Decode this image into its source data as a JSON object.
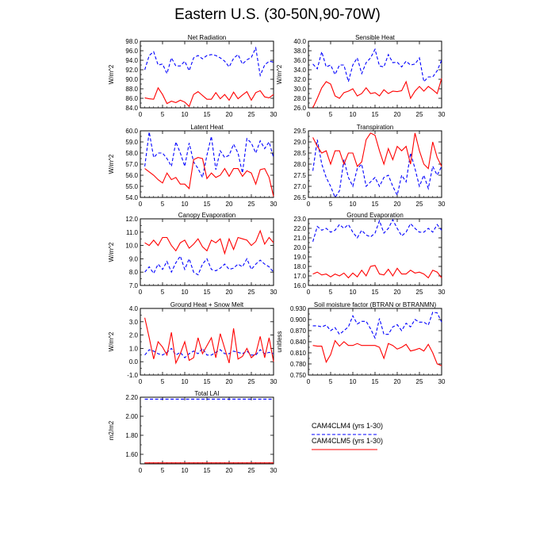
{
  "figure": {
    "title": "Eastern U.S. (30-50N,90-70W)"
  },
  "legend": {
    "entries": [
      {
        "label": "CAM4CLM4 (yrs 1-30)",
        "color": "#0000ff",
        "dash": true
      },
      {
        "label": "CAM4CLM5 (yrs 1-30)",
        "color": "#ff0000",
        "dash": false
      }
    ]
  },
  "chart_data": [
    {
      "type": "line",
      "title": "Net Radiation",
      "ylabel": "W/m^2",
      "xlim": [
        0,
        30
      ],
      "ylim": [
        84,
        98
      ],
      "yticks": [
        84,
        86,
        88,
        90,
        92,
        94,
        96,
        98
      ],
      "yfmt": 1,
      "xticks": [
        0,
        5,
        10,
        15,
        20,
        25,
        30
      ],
      "series": [
        {
          "name": "CAM4CLM4 (yrs 1-30)",
          "color": "#0000ff",
          "dash": true,
          "values": [
            92.0,
            95.0,
            95.8,
            93.0,
            93.2,
            91.2,
            94.5,
            92.8,
            92.8,
            93.8,
            91.8,
            94.5,
            95.0,
            94.3,
            95.0,
            95.2,
            95.0,
            94.5,
            93.8,
            92.6,
            94.4,
            95.2,
            93.2,
            94.1,
            94.6,
            96.6,
            90.8,
            93.0,
            93.8,
            93.6
          ]
        },
        {
          "name": "CAM4CLM5 (yrs 1-30)",
          "color": "#ff0000",
          "dash": false,
          "values": [
            86.1,
            85.9,
            85.8,
            88.2,
            86.8,
            84.9,
            85.4,
            85.1,
            85.6,
            85.2,
            84.3,
            86.8,
            87.4,
            86.6,
            85.8,
            85.8,
            87.2,
            85.9,
            86.8,
            85.6,
            87.3,
            85.9,
            86.7,
            87.4,
            85.6,
            87.2,
            87.6,
            86.3,
            86.1,
            86.8
          ]
        }
      ]
    },
    {
      "type": "line",
      "title": "Sensible Heat",
      "ylabel": "W/m^2",
      "xlim": [
        0,
        30
      ],
      "ylim": [
        26,
        40
      ],
      "yticks": [
        26,
        28,
        30,
        32,
        34,
        36,
        38,
        40
      ],
      "yfmt": 1,
      "xticks": [
        0,
        5,
        10,
        15,
        20,
        25,
        30
      ],
      "series": [
        {
          "name": "CAM4CLM4 (yrs 1-30)",
          "color": "#0000ff",
          "dash": true,
          "values": [
            35.2,
            34.2,
            37.8,
            34.6,
            35.0,
            33.0,
            35.0,
            35.0,
            31.5,
            35.0,
            36.5,
            33.2,
            35.5,
            36.5,
            38.3,
            34.8,
            34.6,
            37.2,
            35.5,
            35.6,
            34.6,
            35.8,
            35.0,
            35.2,
            36.5,
            31.5,
            32.5,
            32.5,
            33.8,
            36.0
          ]
        },
        {
          "name": "CAM4CLM5 (yrs 1-30)",
          "color": "#ff0000",
          "dash": false,
          "values": [
            26.0,
            28.0,
            30.2,
            31.5,
            31.0,
            28.5,
            28.0,
            29.2,
            29.5,
            30.0,
            28.5,
            29.0,
            30.2,
            29.0,
            29.2,
            28.5,
            29.8,
            29.0,
            29.5,
            29.4,
            29.6,
            31.5,
            28.0,
            29.5,
            30.5,
            29.5,
            30.5,
            29.8,
            29.0,
            32.2
          ]
        }
      ]
    },
    {
      "type": "line",
      "title": "Latent Heat",
      "ylabel": "W/m^2",
      "xlim": [
        0,
        30
      ],
      "ylim": [
        54,
        60
      ],
      "yticks": [
        54,
        55,
        56,
        57,
        58,
        59,
        60
      ],
      "yfmt": 1,
      "xticks": [
        0,
        5,
        10,
        15,
        20,
        25,
        30
      ],
      "series": [
        {
          "name": "CAM4CLM4 (yrs 1-30)",
          "color": "#0000ff",
          "dash": true,
          "values": [
            56.8,
            59.9,
            57.6,
            58.0,
            58.0,
            57.5,
            56.8,
            59.0,
            58.0,
            56.8,
            58.9,
            57.2,
            56.6,
            55.8,
            57.8,
            59.5,
            56.5,
            58.2,
            57.6,
            57.8,
            58.8,
            58.0,
            56.2,
            59.3,
            58.9,
            58.0,
            59.1,
            58.4,
            59.0,
            57.6
          ]
        },
        {
          "name": "CAM4CLM5 (yrs 1-30)",
          "color": "#ff0000",
          "dash": false,
          "values": [
            56.6,
            56.3,
            56.0,
            55.6,
            55.3,
            56.2,
            55.6,
            55.8,
            55.2,
            55.2,
            54.8,
            57.4,
            57.6,
            57.5,
            55.7,
            56.2,
            55.8,
            56.0,
            56.6,
            55.9,
            56.6,
            56.6,
            55.9,
            56.4,
            56.2,
            55.2,
            56.5,
            56.6,
            55.8,
            54.1
          ]
        }
      ]
    },
    {
      "type": "line",
      "title": "Transpiration",
      "ylabel": "",
      "xlim": [
        0,
        30
      ],
      "ylim": [
        26.5,
        29.5
      ],
      "yticks": [
        26.5,
        27.0,
        27.5,
        28.0,
        28.5,
        29.0,
        29.5
      ],
      "yfmt": 1,
      "xticks": [
        0,
        5,
        10,
        15,
        20,
        25,
        30
      ],
      "series": [
        {
          "name": "CAM4CLM4 (yrs 1-30)",
          "color": "#0000ff",
          "dash": true,
          "values": [
            27.7,
            29.1,
            28.0,
            27.4,
            27.0,
            26.5,
            26.8,
            28.2,
            27.4,
            27.0,
            27.8,
            28.0,
            27.0,
            27.2,
            27.4,
            27.0,
            27.4,
            27.5,
            27.0,
            26.6,
            27.5,
            27.2,
            28.5,
            27.8,
            27.0,
            27.5,
            26.9,
            27.9,
            27.5,
            27.9
          ]
        },
        {
          "name": "CAM4CLM5 (yrs 1-30)",
          "color": "#ff0000",
          "dash": false,
          "values": [
            29.2,
            28.8,
            28.5,
            28.6,
            28.0,
            28.6,
            28.6,
            28.0,
            28.5,
            28.5,
            27.9,
            28.1,
            29.1,
            29.4,
            29.3,
            28.6,
            28.0,
            28.7,
            28.2,
            28.8,
            28.6,
            28.8,
            28.0,
            29.4,
            28.6,
            28.0,
            27.8,
            29.0,
            28.3,
            27.9
          ]
        }
      ]
    },
    {
      "type": "line",
      "title": "Canopy Evaporation",
      "ylabel": "W/m^2",
      "xlim": [
        0,
        30
      ],
      "ylim": [
        7,
        12
      ],
      "yticks": [
        7,
        8,
        9,
        10,
        11,
        12
      ],
      "yfmt": 1,
      "xticks": [
        0,
        5,
        10,
        15,
        20,
        25,
        30
      ],
      "series": [
        {
          "name": "CAM4CLM4 (yrs 1-30)",
          "color": "#0000ff",
          "dash": true,
          "values": [
            8.0,
            8.4,
            7.9,
            8.6,
            8.2,
            8.8,
            8.0,
            8.7,
            9.2,
            8.2,
            9.0,
            8.0,
            7.8,
            8.6,
            9.0,
            8.2,
            8.1,
            8.3,
            8.6,
            8.2,
            8.3,
            8.6,
            8.4,
            9.0,
            8.2,
            8.6,
            8.9,
            8.6,
            8.4,
            8.0
          ]
        },
        {
          "name": "CAM4CLM5 (yrs 1-30)",
          "color": "#ff0000",
          "dash": false,
          "values": [
            10.2,
            10.0,
            10.4,
            10.0,
            10.6,
            10.6,
            10.0,
            9.6,
            10.2,
            10.4,
            9.8,
            10.1,
            10.5,
            9.9,
            9.6,
            10.4,
            10.2,
            10.5,
            9.4,
            10.5,
            9.7,
            10.6,
            10.5,
            10.4,
            10.0,
            10.3,
            11.1,
            10.1,
            10.6,
            10.2
          ]
        }
      ]
    },
    {
      "type": "line",
      "title": "Ground Evaporation",
      "ylabel": "",
      "xlim": [
        0,
        30
      ],
      "ylim": [
        16,
        23
      ],
      "yticks": [
        16,
        17,
        18,
        19,
        20,
        21,
        22,
        23
      ],
      "yfmt": 1,
      "xticks": [
        0,
        5,
        10,
        15,
        20,
        25,
        30
      ],
      "series": [
        {
          "name": "CAM4CLM4 (yrs 1-30)",
          "color": "#0000ff",
          "dash": true,
          "values": [
            20.6,
            22.2,
            21.8,
            22.0,
            21.6,
            21.8,
            22.4,
            22.0,
            22.4,
            21.6,
            21.0,
            21.8,
            21.3,
            21.1,
            21.5,
            22.8,
            21.5,
            22.0,
            22.9,
            22.0,
            21.2,
            21.6,
            22.5,
            22.0,
            21.6,
            21.6,
            22.0,
            21.6,
            22.4,
            21.8
          ]
        },
        {
          "name": "CAM4CLM5 (yrs 1-30)",
          "color": "#ff0000",
          "dash": false,
          "values": [
            17.2,
            17.4,
            17.1,
            17.2,
            16.9,
            17.2,
            17.0,
            17.3,
            16.8,
            17.3,
            16.9,
            17.6,
            17.0,
            18.0,
            18.1,
            17.2,
            17.1,
            17.7,
            17.0,
            17.8,
            17.2,
            17.2,
            17.6,
            17.3,
            17.4,
            17.2,
            16.8,
            17.6,
            17.4,
            16.8
          ]
        }
      ]
    },
    {
      "type": "line",
      "title": "Ground Heat + Snow Melt",
      "ylabel": "W/m^2",
      "xlim": [
        0,
        30
      ],
      "ylim": [
        -1,
        4
      ],
      "yticks": [
        -1,
        0,
        1,
        2,
        3,
        4
      ],
      "yfmt": 1,
      "xticks": [
        0,
        5,
        10,
        15,
        20,
        25,
        30
      ],
      "series": [
        {
          "name": "CAM4CLM4 (yrs 1-30)",
          "color": "#0000ff",
          "dash": true,
          "values": [
            0.5,
            0.9,
            0.8,
            0.6,
            0.5,
            0.7,
            1.0,
            0.5,
            0.7,
            0.3,
            0.6,
            0.8,
            0.6,
            1.0,
            0.5,
            0.5,
            0.7,
            0.9,
            0.6,
            0.6,
            0.8,
            0.7,
            0.6,
            0.8,
            0.5,
            0.5,
            0.9,
            0.6,
            0.7,
            0.6
          ]
        },
        {
          "name": "CAM4CLM5 (yrs 1-30)",
          "color": "#ff0000",
          "dash": false,
          "values": [
            3.3,
            1.8,
            0.2,
            1.5,
            1.1,
            0.5,
            2.2,
            -0.1,
            0.6,
            1.5,
            0.1,
            0.3,
            1.8,
            0.6,
            1.2,
            1.8,
            0.3,
            2.1,
            1.0,
            -0.1,
            2.5,
            0.2,
            0.4,
            1.0,
            0.3,
            0.6,
            1.9,
            0.3,
            1.8,
            0.0
          ]
        }
      ]
    },
    {
      "type": "line",
      "title": "Soil moisture factor (BTRAN or BTRANMN)",
      "ylabel": "unitless",
      "xlim": [
        0,
        30
      ],
      "ylim": [
        0.75,
        0.93
      ],
      "yticks": [
        0.75,
        0.78,
        0.81,
        0.84,
        0.87,
        0.9,
        0.93
      ],
      "yfmt": 3,
      "xticks": [
        0,
        5,
        10,
        15,
        20,
        25,
        30
      ],
      "series": [
        {
          "name": "CAM4CLM4 (yrs 1-30)",
          "color": "#0000ff",
          "dash": true,
          "values": [
            0.883,
            0.883,
            0.88,
            0.885,
            0.87,
            0.878,
            0.86,
            0.87,
            0.88,
            0.91,
            0.888,
            0.895,
            0.895,
            0.875,
            0.85,
            0.903,
            0.86,
            0.86,
            0.88,
            0.886,
            0.87,
            0.89,
            0.88,
            0.9,
            0.893,
            0.893,
            0.885,
            0.92,
            0.918,
            0.893
          ]
        },
        {
          "name": "CAM4CLM5 (yrs 1-30)",
          "color": "#ff0000",
          "dash": false,
          "values": [
            0.83,
            0.828,
            0.828,
            0.785,
            0.805,
            0.843,
            0.828,
            0.84,
            0.83,
            0.83,
            0.835,
            0.83,
            0.83,
            0.83,
            0.83,
            0.825,
            0.795,
            0.835,
            0.83,
            0.82,
            0.825,
            0.833,
            0.815,
            0.818,
            0.822,
            0.815,
            0.833,
            0.81,
            0.78,
            0.775
          ]
        }
      ]
    },
    {
      "type": "line",
      "title": "Total LAI",
      "ylabel": "m2/m2",
      "xlim": [
        0,
        30
      ],
      "ylim": [
        1.5,
        2.2
      ],
      "yticks": [
        1.6,
        1.8,
        2.0,
        2.2
      ],
      "yfmt": 2,
      "xticks": [
        0,
        5,
        10,
        15,
        20,
        25,
        30
      ],
      "series": [
        {
          "name": "CAM4CLM4 (yrs 1-30)",
          "color": "#0000ff",
          "dash": true,
          "values": [
            2.18,
            2.18,
            2.18,
            2.18,
            2.18,
            2.18,
            2.18,
            2.18,
            2.18,
            2.18,
            2.18,
            2.18,
            2.18,
            2.18,
            2.18,
            2.18,
            2.18,
            2.18,
            2.18,
            2.18,
            2.18,
            2.18,
            2.18,
            2.18,
            2.18,
            2.18,
            2.18,
            2.18,
            2.18,
            2.18
          ]
        },
        {
          "name": "CAM4CLM5 (yrs 1-30)",
          "color": "#ff0000",
          "dash": false,
          "values": [
            1.51,
            1.51,
            1.51,
            1.51,
            1.51,
            1.51,
            1.51,
            1.51,
            1.51,
            1.51,
            1.51,
            1.51,
            1.51,
            1.51,
            1.51,
            1.51,
            1.51,
            1.51,
            1.51,
            1.51,
            1.51,
            1.51,
            1.51,
            1.51,
            1.51,
            1.51,
            1.51,
            1.51,
            1.51,
            1.51
          ]
        }
      ]
    }
  ]
}
